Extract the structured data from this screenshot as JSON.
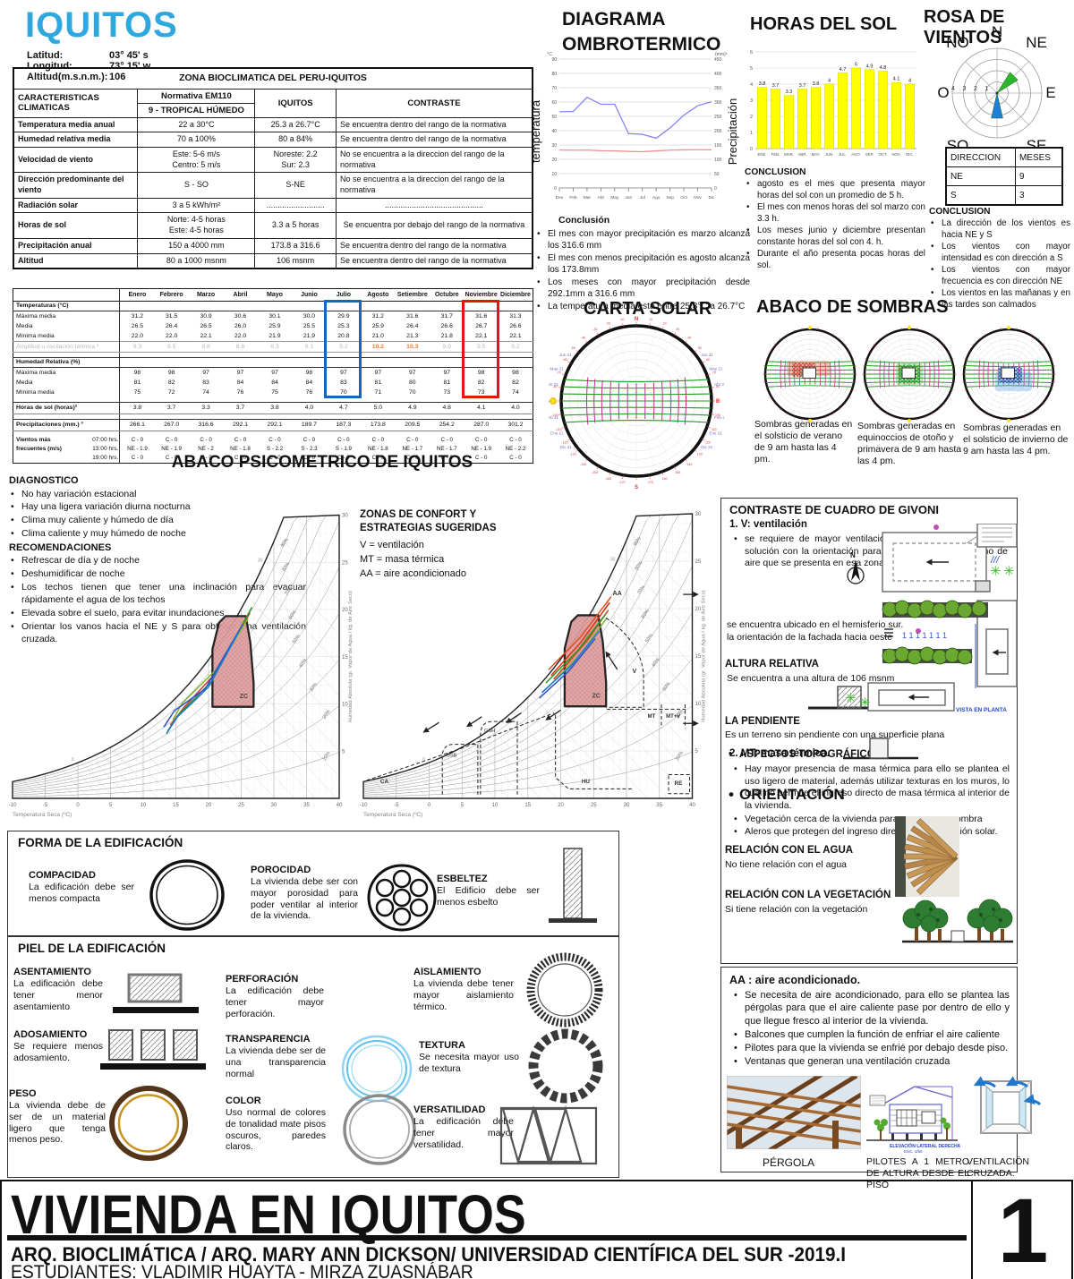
{
  "header": {
    "city": "IQUITOS",
    "meta": [
      {
        "label": "Latitud:",
        "value": "03° 45' s"
      },
      {
        "label": "Longitud:",
        "value": "73° 15' w"
      },
      {
        "label": "Altitud(m.s.n.m.):",
        "value": "106"
      }
    ]
  },
  "zona_table": {
    "title": "ZONA BIOCLIMATICA DEL PERU-IQUITOS",
    "col1_header": "CARACTERISTICAS CLIMATICAS",
    "col2_header": "Normativa EM110",
    "col2_sub": "9 - TROPICAL HÚMEDO",
    "col3_header": "IQUITOS",
    "col4_header": "CONTRASTE",
    "rows": [
      {
        "c": "Temperatura media anual",
        "n": "22 a 30°C",
        "i": "25.3 a 26.7°C",
        "x": "Se encuentra dentro del rango de la normativa"
      },
      {
        "c": "Humedad relativa media",
        "n": "70 a 100%",
        "i": "80 a 84%",
        "x": "Se encuentra dentro del rango de la normativa"
      },
      {
        "c": "Velocidad de viento",
        "n": "Este: 5-6 m/s\nCentro: 5 m/s",
        "i": "Noreste: 2.2\nSur: 2.3",
        "x": "No se encuentra a la direccion del rango de la normativa"
      },
      {
        "c": "Dirección predominante del viento",
        "n": "S - SO",
        "i": "S-NE",
        "x": "No se encuentra a la direccion del rango de la normativa"
      },
      {
        "c": "Radiación solar",
        "n": "3 a 5 kWh/m²",
        "i": "..........................",
        "x": "............................................",
        "center": true
      },
      {
        "c": "Horas de sol",
        "n": "Norte: 4-5 horas\nEste: 4-5 horas",
        "i": "3.3  a 5 horas",
        "x": "Se encuentra por debajo del rango de la normativa",
        "center": true
      },
      {
        "c": "Precipitación anual",
        "n": "150 a 4000 mm",
        "i": "173.8 a 316.6",
        "x": "Se encuentra dentro del rango de la normativa"
      },
      {
        "c": "Altitud",
        "n": "80 a 1000 msnm",
        "i": "106 msnm",
        "x": "Se encuentra dentro del rango de la normativa"
      }
    ]
  },
  "monthly_table": {
    "months": [
      "Enero",
      "Febrero",
      "Marzo",
      "Abril",
      "Mayo",
      "Junio",
      "Julio",
      "Agosto",
      "Setiembre",
      "Octubre",
      "Noviembre",
      "Diciembre"
    ],
    "rows": [
      {
        "type": "section",
        "label": "Temperaturas (°C)"
      },
      {
        "type": "data",
        "label": "Máxima media",
        "values": [
          "31.2",
          "31.5",
          "30.9",
          "30.6",
          "30.1",
          "30.0",
          "29.9",
          "31.2",
          "31.6",
          "31.7",
          "31.6",
          "31.3"
        ]
      },
      {
        "type": "data",
        "label": "Media",
        "values": [
          "26.5",
          "26.4",
          "26.5",
          "26.0",
          "25.9",
          "25.5",
          "25.3",
          "25.9",
          "26.4",
          "26.6",
          "26.7",
          "26.6"
        ]
      },
      {
        "type": "data",
        "label": "Mínima media",
        "values": [
          "22.0",
          "22.0",
          "22.1",
          "22.0",
          "21.9",
          "21.9",
          "20.8",
          "21.0",
          "21.3",
          "21.8",
          "22.1",
          "22.1"
        ]
      },
      {
        "type": "gray",
        "label": "Amplitud u oscilación térmica ¹",
        "values": [
          "9.3",
          "9.5",
          "8.8",
          "8.6",
          "8.3",
          "8.1",
          "9.2",
          "10.2",
          "10.3",
          "9.9",
          "9.5",
          "9.2"
        ],
        "orange": [
          7,
          8
        ]
      },
      {
        "type": "spacer"
      },
      {
        "type": "section",
        "label": "Humedad Relativa (%)"
      },
      {
        "type": "data",
        "label": "Máxima media",
        "values": [
          "98",
          "98",
          "97",
          "97",
          "97",
          "98",
          "97",
          "97",
          "97",
          "97",
          "98",
          "98"
        ]
      },
      {
        "type": "data",
        "label": "Media",
        "values": [
          "81",
          "82",
          "83",
          "84",
          "84",
          "84",
          "83",
          "81",
          "80",
          "81",
          "82",
          "82"
        ]
      },
      {
        "type": "data",
        "label": "Mínima media",
        "values": [
          "75",
          "72",
          "74",
          "76",
          "75",
          "76",
          "70",
          "71",
          "70",
          "73",
          "73",
          "74"
        ]
      },
      {
        "type": "spacer"
      },
      {
        "type": "strong",
        "label": "Horas de sol (horas)²",
        "values": [
          "3.8",
          "3.7",
          "3.3",
          "3.7",
          "3.8",
          "4.0",
          "4.7",
          "5.0",
          "4.9",
          "4.8",
          "4.1",
          "4.0"
        ]
      },
      {
        "type": "spacer"
      },
      {
        "type": "strong",
        "label": "Precipitaciones (mm.) ³",
        "values": [
          "266.1",
          "267.0",
          "316.6",
          "292.1",
          "292.1",
          "189.7",
          "187.3",
          "173.8",
          "209.5",
          "254.2",
          "287.0",
          "301.2"
        ]
      },
      {
        "type": "spacer"
      },
      {
        "type": "wind",
        "label1": "Vientos más",
        "label2": "frecuentes (m/s)",
        "times": [
          {
            "time": "07:00 hrs.",
            "values": [
              "C - 0",
              "C - 0",
              "C - 0",
              "C - 0",
              "C - 0",
              "C - 0",
              "C - 0",
              "C - 0",
              "C - 0",
              "C - 0",
              "C - 0",
              "C - 0"
            ]
          },
          {
            "time": "13:00 hrs.",
            "values": [
              "NE - 1.9",
              "NE - 1.9",
              "NE - 2",
              "NE - 1.8",
              "S - 2.2",
              "S - 2.3",
              "S - 1.9",
              "NE - 1.8",
              "NE - 1.7",
              "NE - 1.7",
              "NE - 1.9",
              "NE - 2.2"
            ]
          },
          {
            "time": "19:00 hrs.",
            "values": [
              "C - 0",
              "C - 0",
              "C - 0",
              "C - 0",
              "C - 0",
              "C - 0",
              "C - 0",
              "C - 0",
              "C - 0",
              "C - 0",
              "C - 0",
              "C - 0"
            ]
          }
        ]
      }
    ],
    "highlights": [
      {
        "col": 6,
        "color": "#1565c0"
      },
      {
        "col": 10,
        "color": "#e8140c"
      }
    ]
  },
  "ombro": {
    "title_line1": "DIAGRAMA",
    "title_line2": "OMBROTERMICO",
    "ylabel_left": "temperatura",
    "ylabel_right": "Precipitación",
    "unit_left": "°C",
    "unit_right": "(mm)³",
    "conclusion_title": "Conclusión",
    "conclusion": [
      "El mes con mayor precipitación es marzo alcanza los 316.6 mm",
      "El mes con menos precipitación es agosto alcanza los 173.8mm",
      "Los meses con mayor precipitación desde 292.1mm a  316.6 mm",
      "La temperatura media esta entre 25.3°C a 26.7°C"
    ]
  },
  "sol": {
    "title": "HORAS DEL SOL",
    "conclusion_title": "CONCLUSION",
    "conclusion": [
      "agosto es el mes que presenta mayor horas del sol con un promedio de 5 h.",
      "El mes con menos horas del sol marzo con 3.3 h.",
      "Los meses junio y diciembre presentan constante horas del sol con 4. h.",
      "Durante el año presenta pocas horas del sol."
    ]
  },
  "rosa": {
    "title": "ROSA DE VIENTOS",
    "time_label": "13.00",
    "dir_labels": [
      "N",
      "NE",
      "E",
      "SE",
      "S",
      "SO",
      "O",
      "NO"
    ],
    "ring_labels": [
      "4",
      "3",
      "2",
      "1"
    ],
    "table": {
      "headers": [
        "DIRECCION",
        "MESES"
      ],
      "rows": [
        [
          "NE",
          "9"
        ],
        [
          "S",
          "3"
        ]
      ]
    },
    "conclusion_title": "CONCLUSION",
    "conclusion": [
      "La dirección de los vientos es hacia NE y S",
      "Los vientos con mayor intensidad es con dirección a S",
      "Los vientos con mayor frecuencia es con dirección NE",
      "Los vientos en las mañanas y en las tardes son calmados"
    ]
  },
  "carta": {
    "title": "CARTA SOLAR",
    "months_left": [
      "Jun 21",
      "May 21",
      "Abr 21",
      "Mar 21",
      "Feb 21",
      "Ene 21",
      "Dic 21"
    ],
    "n": "N",
    "s": "S",
    "e": "E"
  },
  "sombras": {
    "title": "ABACO DE SOMBRAS",
    "captions": [
      "Sombras generadas en el solsticio de verano de 9 am hasta las 4 pm.",
      "Sombras generadas en equinoccios de otoño y primavera de 9 am hasta las 4 pm.",
      "Sombras generadas en el solsticio de invierno de 9 am hasta las 4 pm."
    ]
  },
  "psychro": {
    "title": "ABACO PSICOMETRICO DE IQUITOS",
    "diagnostico_title": "DIAGNOSTICO",
    "diagnostico": [
      "No hay variación estacional",
      "Hay una ligera variación diurna nocturna",
      "Clima muy caliente y húmedo de día",
      "Clima caliente y muy húmedo de noche"
    ],
    "recom_title": "RECOMENDACIONES",
    "recomendaciones": [
      "Refrescar de día y de noche",
      "Deshumidificar de noche",
      "Los techos tienen que tener una inclinación para evacuar rápidamente el agua de los techos",
      "Elevada sobre el suelo, para evitar inundaciones",
      "Orientar los vanos hacia el NE y S para obtener una ventilación cruzada."
    ],
    "zonas_title": "ZONAS DE CONFORT Y ESTRATEGIAS SUGERIDAS",
    "leyenda": [
      "V    = ventilación",
      "MT = masa térmica",
      "AA = aire acondicionado"
    ],
    "xlabel": "Temperatura Seca (ºC)",
    "ylabel": "Humedad Absoluta (gr. Vapor de Agua / kg. de Aire Seco)",
    "zone_label": "ZC",
    "strategy_labels": [
      "CA",
      "GSB",
      "GSH",
      "HU",
      "V",
      "MT",
      "MT+V",
      "RE",
      "AA"
    ]
  },
  "forma": {
    "title": "FORMA DE LA EDIFICACIÓN",
    "items": [
      {
        "title": "COMPACIDAD",
        "text": "La edificación debe ser menos compacta"
      },
      {
        "title": "POROCIDAD",
        "text": "La vivienda debe ser con mayor porosidad para poder ventilar al interior de la vivienda."
      },
      {
        "title": "ESBELTEZ",
        "text": "El Edificio debe ser menos esbelto"
      }
    ]
  },
  "piel": {
    "title": "PIEL DE LA EDIFICACIÓN",
    "items": [
      {
        "title": "ASENTAMIENTO",
        "text": "La edificación debe tener menor asentamiento"
      },
      {
        "title": "PERFORACIÓN",
        "text": "La edificación debe tener mayor perforación."
      },
      {
        "title": "AISLAMIENTO",
        "text": "La vivienda debe tener mayor aislamiento térmico."
      },
      {
        "title": "ADOSAMIENTO",
        "text": "Se requiere menos adosamiento."
      },
      {
        "title": "TRANSPARENCIA",
        "text": "La vivienda debe ser de una transparencia normal"
      },
      {
        "title": "TEXTURA",
        "text": "Se necesita mayor uso de textura"
      },
      {
        "title": "PESO",
        "text": "La vivienda  debe de ser de un  material  ligero que tenga menos peso."
      },
      {
        "title": "COLOR",
        "text": "Uso  normal de colores de tonalidad mate pisos oscuros, paredes claros."
      },
      {
        "title": "VERSATILIDAD",
        "text": "La edificación debe tener mayor versatilidad."
      }
    ]
  },
  "givoni": {
    "title": "CONTRASTE DE CUADRO DE GIVONI",
    "v_heading": "1.    V: ventilación",
    "v_bullets": [
      "se requiere de mayor ventilación, para ello se plantea una solución con la orientación para aprovechamiento máximo de aire que se presenta en esa zona."
    ],
    "aspectos": "ASPECTOS TOPOGRÁFICOS",
    "orientacion_heading": "ORIENTACIÓN",
    "orientacion_lines": [
      "se encuentra ubicado en el hemisferio sur.",
      "la orientación de la fachada hacia oeste"
    ],
    "altura_heading": "ALTURA RELATIVA",
    "altura_text": "Se encuentra a una altura de 106 msnm",
    "pendiente_heading": "LA PENDIENTE",
    "pendiente_text": "Es un terreno sin pendiente con una superfic­ie plana",
    "mt_heading": "2.    MT: masa térmica.",
    "mt_bullets": [
      "Hay mayor presencia de masa térmica para ello se plantea el uso ligero de material, además utilizar texturas en los muros,  lo cual no permite el ingreso directo de masa térmica al interior de la vivienda.",
      "Vegetación cerca de la vivienda para que genere sombra",
      "Aleros que protegen del ingreso  directo de la radiación solar."
    ],
    "agua_heading": "RELACIÓN CON EL AGUA",
    "agua_text": "No tiene relación con el agua",
    "veg_heading": "RELACIÓN CON LA VEGETACIÓN",
    "veg_text": "Si tiene relación con la vegetación",
    "vista_label": "VISTA EN PLANTA"
  },
  "aa": {
    "title": "AA : aire acondicionado.",
    "bullets": [
      "Se necesita de aire acondicionado, para ello se plantea las pérgolas para que el aire caliente pase por dentro de ello y que llegue fresco al interior de la vivienda.",
      "Balcones que cumplen la función de enfriar el aire caliente",
      "Pilotes para que la vivienda se enfrié por debajo desde piso.",
      "Ventanas que generan una ventilación cruzada"
    ],
    "captions": [
      "PÉRGOLA",
      "PILOTES  A  1  METRO DE  ALTURA  DESDE  EL PISO",
      "VENTILACIÓN CRUZADA."
    ]
  },
  "titleblock": {
    "title": "VIVIENDA EN IQUITOS",
    "line1": "ARQ. BIOCLIMÁTICA / ARQ. MARY ANN DICKSON/ UNIVERSIDAD CIENTÍFICA DEL SUR -2019.I",
    "line2": "ESTUDIANTES: VLADIMIR HUAYTA - MIRZA ZUASNÁBAR",
    "sheet": "1"
  },
  "chart_data": [
    {
      "id": "ombrotermico",
      "type": "line",
      "title": "DIAGRAMA OMBROTERMICO",
      "x": [
        "Ene",
        "Feb",
        "Mar",
        "Abr",
        "May",
        "Jun",
        "Jul",
        "Ago",
        "Sep",
        "Oct",
        "Nov",
        "Dic"
      ],
      "axes": {
        "left": {
          "label": "temperatura",
          "unit": "°C",
          "min": 0,
          "max": 90,
          "step": 10
        },
        "right": {
          "label": "Precipitación",
          "unit": "(mm)³",
          "min": 0,
          "max": 450,
          "step": 50
        }
      },
      "series": [
        {
          "name": "Precipitación (mm)",
          "axis": "right",
          "color": "#8585f2",
          "values": [
            266.1,
            267.0,
            316.6,
            292.1,
            292.1,
            189.7,
            187.3,
            173.8,
            209.5,
            254.2,
            287.0,
            301.2
          ]
        },
        {
          "name": "Temperatura media (°C)",
          "axis": "left",
          "color": "#f29090",
          "values": [
            26.5,
            26.4,
            26.5,
            26.0,
            25.9,
            25.5,
            25.3,
            25.9,
            26.4,
            26.6,
            26.7,
            26.6
          ]
        }
      ]
    },
    {
      "id": "horas_del_sol",
      "type": "bar",
      "title": "HORAS DEL SOL",
      "categories": [
        "ENE.",
        "FEB.",
        "MAR.",
        "ABR.",
        "MAY.",
        "JUN.",
        "JUL.",
        "AGO.",
        "SEP.",
        "OCT.",
        "NOV.",
        "DIC."
      ],
      "values": [
        3.8,
        3.7,
        3.3,
        3.7,
        3.8,
        4,
        4.7,
        5,
        4.9,
        4.8,
        4.1,
        4
      ],
      "ylim": [
        0,
        6
      ],
      "bar_color": "#ffff00"
    },
    {
      "id": "rosa_de_vientos",
      "type": "windrose",
      "rings": [
        1,
        2,
        3,
        4
      ],
      "time": "13.00",
      "sectors": [
        {
          "dir": "NE",
          "speed": 2.2,
          "months": 9,
          "color": "#2db52d"
        },
        {
          "dir": "S",
          "speed": 2.3,
          "months": 3,
          "color": "#1e7fd8"
        }
      ]
    },
    {
      "id": "abaco_psicometrico",
      "type": "psychrometric",
      "x_range": [
        -10,
        40
      ],
      "y_range": [
        0,
        30
      ],
      "comfort_zone_c": [
        20.5,
        27
      ],
      "strategies": [
        "V: ventilación",
        "MT: masa térmica",
        "AA: aire acondicionado"
      ]
    }
  ]
}
